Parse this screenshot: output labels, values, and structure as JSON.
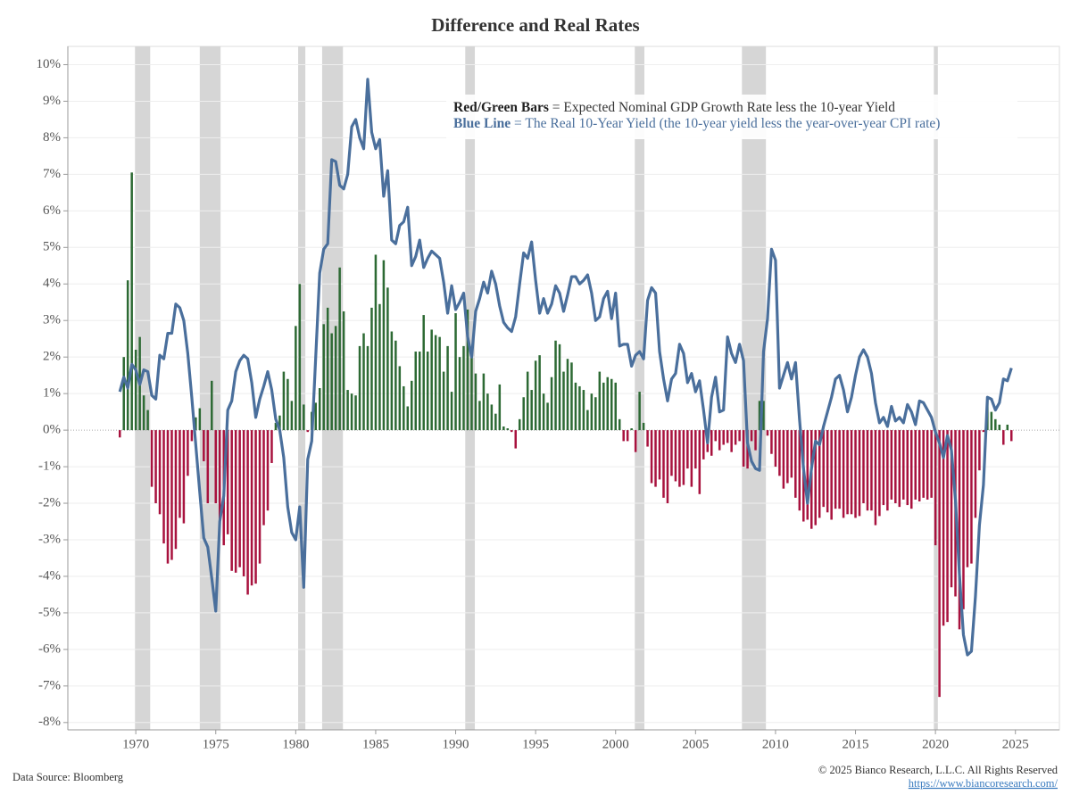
{
  "chart_data": {
    "type": "bar_line",
    "title": "Difference and Real Rates",
    "source": "Data Source: Bloomberg",
    "copyright": "© 2025 Bianco Research, L.L.C. All Rights Reserved",
    "url": "https://www.biancoresearch.com/",
    "xlim": [
      1965.75,
      2027.75
    ],
    "xticks": [
      1970,
      1975,
      1980,
      1985,
      1990,
      1995,
      2000,
      2005,
      2010,
      2015,
      2020,
      2025
    ],
    "ylim": [
      -8.2,
      10.5
    ],
    "yticks": [
      {
        "value": -8,
        "label": "-8%"
      },
      {
        "value": -7,
        "label": "-7%"
      },
      {
        "value": -6,
        "label": "-6%"
      },
      {
        "value": -5,
        "label": "-5%"
      },
      {
        "value": -4,
        "label": "-4%"
      },
      {
        "value": -3,
        "label": "-3%"
      },
      {
        "value": -2,
        "label": "-2%"
      },
      {
        "value": -1,
        "label": "-1%"
      },
      {
        "value": 0,
        "label": "0%"
      },
      {
        "value": 1,
        "label": "1%"
      },
      {
        "value": 2,
        "label": "2%"
      },
      {
        "value": 3,
        "label": "3%"
      },
      {
        "value": 4,
        "label": "4%"
      },
      {
        "value": 5,
        "label": "5%"
      },
      {
        "value": 6,
        "label": "6%"
      },
      {
        "value": 7,
        "label": "7%"
      },
      {
        "value": 8,
        "label": "8%"
      },
      {
        "value": 9,
        "label": "9%"
      },
      {
        "value": 10,
        "label": "10%"
      }
    ],
    "grid": true,
    "shade_color": "#d6d6d6",
    "shaded_ranges": [
      [
        1969.95,
        1970.9
      ],
      [
        1974.0,
        1975.3
      ],
      [
        1980.15,
        1980.6
      ],
      [
        1981.65,
        1982.95
      ],
      [
        1990.6,
        1991.2
      ],
      [
        2001.2,
        2001.8
      ],
      [
        2007.9,
        2009.4
      ],
      [
        2019.9,
        2020.15
      ]
    ],
    "x": [
      1969,
      1969.25,
      1969.5,
      1969.75,
      1970,
      1970.25,
      1970.5,
      1970.75,
      1971,
      1971.25,
      1971.5,
      1971.75,
      1972,
      1972.25,
      1972.5,
      1972.75,
      1973,
      1973.25,
      1973.5,
      1973.75,
      1974,
      1974.25,
      1974.5,
      1974.75,
      1975,
      1975.25,
      1975.5,
      1975.75,
      1976,
      1976.25,
      1976.5,
      1976.75,
      1977,
      1977.25,
      1977.5,
      1977.75,
      1978,
      1978.25,
      1978.5,
      1978.75,
      1979,
      1979.25,
      1979.5,
      1979.75,
      1980,
      1980.25,
      1980.5,
      1980.75,
      1981,
      1981.25,
      1981.5,
      1981.75,
      1982,
      1982.25,
      1982.5,
      1982.75,
      1983,
      1983.25,
      1983.5,
      1983.75,
      1984,
      1984.25,
      1984.5,
      1984.75,
      1985,
      1985.25,
      1985.5,
      1985.75,
      1986,
      1986.25,
      1986.5,
      1986.75,
      1987,
      1987.25,
      1987.5,
      1987.75,
      1988,
      1988.25,
      1988.5,
      1988.75,
      1989,
      1989.25,
      1989.5,
      1989.75,
      1990,
      1990.25,
      1990.5,
      1990.75,
      1991,
      1991.25,
      1991.5,
      1991.75,
      1992,
      1992.25,
      1992.5,
      1992.75,
      1993,
      1993.25,
      1993.5,
      1993.75,
      1994,
      1994.25,
      1994.5,
      1994.75,
      1995,
      1995.25,
      1995.5,
      1995.75,
      1996,
      1996.25,
      1996.5,
      1996.75,
      1997,
      1997.25,
      1997.5,
      1997.75,
      1998,
      1998.25,
      1998.5,
      1998.75,
      1999,
      1999.25,
      1999.5,
      1999.75,
      2000,
      2000.25,
      2000.5,
      2000.75,
      2001,
      2001.25,
      2001.5,
      2001.75,
      2002,
      2002.25,
      2002.5,
      2002.75,
      2003,
      2003.25,
      2003.5,
      2003.75,
      2004,
      2004.25,
      2004.5,
      2004.75,
      2005,
      2005.25,
      2005.5,
      2005.75,
      2006,
      2006.25,
      2006.5,
      2006.75,
      2007,
      2007.25,
      2007.5,
      2007.75,
      2008,
      2008.25,
      2008.5,
      2008.75,
      2009,
      2009.25,
      2009.5,
      2009.75,
      2010,
      2010.25,
      2010.5,
      2010.75,
      2011,
      2011.25,
      2011.5,
      2011.75,
      2012,
      2012.25,
      2012.5,
      2012.75,
      2013,
      2013.25,
      2013.5,
      2013.75,
      2014,
      2014.25,
      2014.5,
      2014.75,
      2015,
      2015.25,
      2015.5,
      2015.75,
      2016,
      2016.25,
      2016.5,
      2016.75,
      2017,
      2017.25,
      2017.5,
      2017.75,
      2018,
      2018.25,
      2018.5,
      2018.75,
      2019,
      2019.25,
      2019.5,
      2019.75,
      2020,
      2020.25,
      2020.5,
      2020.75,
      2021,
      2021.25,
      2021.5,
      2021.75,
      2022,
      2022.25,
      2022.5,
      2022.75,
      2023,
      2023.25,
      2023.5,
      2023.75,
      2024,
      2024.25,
      2024.5,
      2024.75
    ],
    "series": [
      {
        "name": "Red/Green Bars",
        "description": "= Expected Nominal GDP Growth Rate less the 10-year Yield",
        "type": "bar",
        "color": "#2d6a34",
        "negative_color": "#a8123e",
        "values": [
          -0.2,
          2.0,
          4.1,
          7.05,
          2.2,
          2.55,
          0.95,
          0.55,
          -1.55,
          -2.0,
          -2.3,
          -3.1,
          -3.65,
          -3.55,
          -3.25,
          -2.4,
          -2.55,
          -1.25,
          -0.3,
          0.35,
          0.6,
          -0.85,
          -2.0,
          1.35,
          -2.0,
          -2.6,
          -3.15,
          -2.85,
          -3.85,
          -3.9,
          -3.75,
          -4.0,
          -4.5,
          -4.25,
          -4.2,
          -3.65,
          -2.6,
          -2.2,
          -0.9,
          0.2,
          0.4,
          1.6,
          1.4,
          0.8,
          2.85,
          4.0,
          0.7,
          -0.05,
          0.5,
          0.75,
          1.15,
          2.9,
          3.35,
          2.65,
          2.85,
          4.45,
          3.25,
          1.1,
          1.0,
          0.95,
          2.3,
          2.65,
          2.3,
          3.35,
          4.8,
          3.45,
          4.65,
          3.9,
          2.7,
          2.45,
          1.75,
          1.2,
          0.65,
          1.35,
          2.15,
          2.15,
          3.15,
          2.15,
          2.75,
          2.6,
          2.55,
          1.6,
          2.3,
          1.05,
          3.2,
          2.0,
          2.3,
          3.3,
          2.0,
          1.55,
          0.8,
          1.55,
          1.0,
          0.7,
          0.45,
          1.25,
          0.1,
          0.05,
          -0.05,
          -0.5,
          0.3,
          0.9,
          1.6,
          1.1,
          1.9,
          2.05,
          1.0,
          0.75,
          1.45,
          2.45,
          2.35,
          1.6,
          1.95,
          1.85,
          1.3,
          1.2,
          1.1,
          0.55,
          1.0,
          0.9,
          1.6,
          1.3,
          1.45,
          1.4,
          1.3,
          0.3,
          -0.3,
          -0.3,
          0.05,
          -0.6,
          1.05,
          0.2,
          -0.45,
          -1.45,
          -1.55,
          -1.35,
          -1.85,
          -2.0,
          -1.25,
          -1.4,
          -1.55,
          -1.5,
          -1.05,
          -1.55,
          -1.05,
          -1.75,
          -0.8,
          -0.6,
          -0.7,
          -0.3,
          -0.55,
          -0.4,
          -0.35,
          -0.6,
          -0.4,
          -0.3,
          -1.0,
          -1.05,
          -0.3,
          -0.55,
          0.8,
          0.8,
          -0.15,
          -0.65,
          -1.0,
          -1.25,
          -1.6,
          -1.45,
          -1.3,
          -1.85,
          -2.2,
          -2.5,
          -2.45,
          -2.7,
          -2.6,
          -2.4,
          -2.1,
          -2.25,
          -2.45,
          -2.15,
          -2.15,
          -2.4,
          -2.3,
          -2.3,
          -2.4,
          -2.35,
          -2.0,
          -2.2,
          -2.2,
          -2.6,
          -2.35,
          -2.05,
          -2.2,
          -1.9,
          -2.0,
          -2.1,
          -1.9,
          -2.05,
          -2.15,
          -1.9,
          -1.95,
          -1.85,
          -1.9,
          -1.85,
          -3.15,
          -7.3,
          -5.35,
          -5.25,
          -4.3,
          -4.55,
          -5.45,
          -4.9,
          -3.75,
          -3.65,
          -2.4,
          -1.1,
          -0.05,
          0.85,
          0.5,
          0.3,
          0.15,
          -0.4,
          0.15,
          -0.3
        ]
      },
      {
        "name": "Blue Line",
        "description": "= The Real 10-Year Yield (the 10-year yield less the year-over-year CPI rate)",
        "type": "line",
        "color": "#4a6f9c",
        "values": [
          1.05,
          1.45,
          1.15,
          1.8,
          1.65,
          1.25,
          1.65,
          1.6,
          0.95,
          0.85,
          2.05,
          1.95,
          2.65,
          2.65,
          3.45,
          3.35,
          3.0,
          2.1,
          0.9,
          -0.4,
          -1.7,
          -2.95,
          -3.2,
          -4.05,
          -4.95,
          -2.5,
          -1.8,
          0.55,
          0.8,
          1.6,
          1.9,
          2.05,
          1.95,
          1.3,
          0.35,
          0.85,
          1.2,
          1.6,
          1.1,
          0.3,
          0.0,
          -0.75,
          -2.1,
          -2.8,
          -3.0,
          -2.1,
          -4.3,
          -0.8,
          -0.3,
          2.0,
          4.3,
          4.95,
          5.1,
          7.4,
          7.35,
          6.7,
          6.6,
          7.0,
          8.3,
          8.5,
          8.0,
          7.7,
          9.6,
          8.15,
          7.7,
          7.95,
          6.4,
          7.1,
          5.2,
          5.1,
          5.6,
          5.7,
          6.1,
          4.5,
          4.75,
          5.2,
          4.45,
          4.7,
          4.9,
          4.8,
          4.7,
          4.05,
          3.2,
          3.95,
          3.3,
          3.5,
          3.75,
          2.55,
          2.0,
          3.25,
          3.6,
          4.05,
          3.75,
          4.35,
          4.0,
          3.4,
          2.95,
          2.8,
          2.7,
          3.1,
          4.0,
          4.85,
          4.7,
          5.15,
          4.1,
          3.2,
          3.6,
          3.2,
          3.45,
          3.95,
          3.75,
          3.25,
          3.7,
          4.2,
          4.2,
          4.0,
          4.1,
          4.25,
          3.75,
          3.0,
          3.1,
          3.6,
          3.8,
          3.05,
          3.75,
          2.3,
          2.35,
          2.35,
          1.75,
          2.05,
          2.15,
          1.95,
          3.55,
          3.9,
          3.75,
          2.15,
          1.4,
          0.8,
          1.4,
          1.55,
          2.35,
          2.1,
          1.3,
          1.55,
          1.05,
          1.35,
          0.55,
          -0.35,
          0.9,
          1.45,
          0.5,
          0.55,
          2.55,
          2.1,
          1.85,
          2.35,
          1.9,
          -0.35,
          -0.85,
          -1.05,
          -1.1,
          2.15,
          3.05,
          4.95,
          4.65,
          1.15,
          1.5,
          1.85,
          1.4,
          1.85,
          0.3,
          -1.05,
          -2.0,
          -1.05,
          -0.3,
          -0.4,
          0.1,
          0.5,
          0.9,
          1.4,
          1.5,
          1.1,
          0.5,
          0.9,
          1.5,
          2.0,
          2.2,
          2.0,
          1.55,
          0.75,
          0.2,
          0.35,
          0.1,
          0.65,
          0.25,
          0.35,
          0.2,
          0.7,
          0.5,
          0.15,
          0.8,
          0.75,
          0.55,
          0.35,
          -0.05,
          -0.35,
          -0.75,
          -0.15,
          -0.55,
          -1.9,
          -3.95,
          -5.6,
          -6.15,
          -6.05,
          -4.55,
          -2.6,
          -1.5,
          0.9,
          0.85,
          0.55,
          0.75,
          1.4,
          1.35,
          1.7
        ]
      }
    ]
  }
}
